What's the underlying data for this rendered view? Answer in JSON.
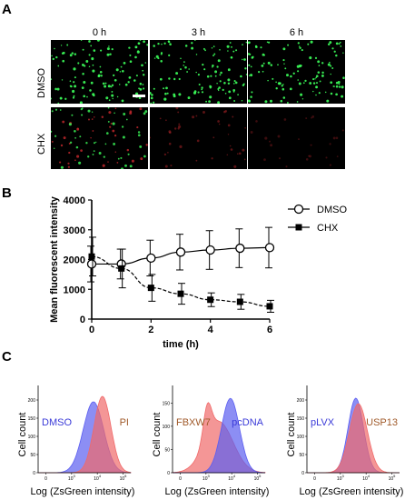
{
  "panels": {
    "a": {
      "letter": "A",
      "columns": [
        "0 h",
        "3 h",
        "6 h"
      ],
      "rows": [
        "DMSO",
        "CHX"
      ],
      "scale_bar": true
    },
    "b": {
      "letter": "B"
    },
    "c": {
      "letter": "C"
    }
  },
  "chart_data": [
    {
      "type": "line",
      "panel": "B",
      "xlabel": "time (h)",
      "ylabel": "Mean fluorescent intensity",
      "xlim": [
        0,
        6
      ],
      "ylim": [
        0,
        4000
      ],
      "xticks": [
        "0",
        "2",
        "4",
        "6"
      ],
      "yticks": [
        "0",
        "1000",
        "2000",
        "3000",
        "4000"
      ],
      "legend_position": "top-right",
      "series": [
        {
          "name": "DMSO",
          "marker": "open-circle",
          "x": [
            0,
            1,
            2,
            3,
            4,
            5,
            6
          ],
          "y": [
            1850,
            1850,
            2050,
            2250,
            2320,
            2380,
            2400
          ],
          "error": [
            600,
            500,
            600,
            600,
            650,
            650,
            680
          ]
        },
        {
          "name": "CHX",
          "marker": "filled-square",
          "x": [
            0,
            1,
            2,
            3,
            4,
            5,
            6
          ],
          "y": [
            2100,
            1700,
            1050,
            850,
            650,
            580,
            430
          ],
          "error": [
            650,
            650,
            450,
            350,
            230,
            250,
            200
          ]
        }
      ]
    },
    {
      "type": "area",
      "panel": "C-1",
      "xlabel": "Log (ZsGreen intensity)",
      "ylabel": "Cell count",
      "yticks": [
        "0",
        "50",
        "100",
        "150",
        "200"
      ],
      "ylim": [
        0,
        230
      ],
      "xticks": [
        "0",
        "10^3",
        "10^4",
        "10^5"
      ],
      "series": [
        {
          "name": "DMSO",
          "color": "#5b5ef0",
          "peak_log": 3.85,
          "peak_count": 195,
          "width": 0.4
        },
        {
          "name": "PI",
          "color": "#f06a6a",
          "peak_log": 4.2,
          "peak_count": 210,
          "width": 0.33
        }
      ]
    },
    {
      "type": "area",
      "panel": "C-2",
      "xlabel": "Log (ZsGreen intensity)",
      "ylabel": "Cell count",
      "yticks": [
        "0",
        "50",
        "100",
        "150"
      ],
      "ylim": [
        0,
        180
      ],
      "xticks": [
        "0",
        "10^3",
        "10^4",
        "10^5"
      ],
      "series": [
        {
          "name": "FBXW7",
          "color": "#f06a6a",
          "peak_log": 3.5,
          "peak_count": 110,
          "width": 0.55
        },
        {
          "name": "pcDNA",
          "color": "#5b5ef0",
          "peak_log": 3.95,
          "peak_count": 160,
          "width": 0.35
        }
      ]
    },
    {
      "type": "area",
      "panel": "C-3",
      "xlabel": "Log (ZsGreen intensity)",
      "ylabel": "Cell count",
      "yticks": [
        "0",
        "50",
        "100",
        "150",
        "200"
      ],
      "ylim": [
        0,
        230
      ],
      "xticks": [
        "0",
        "10^3",
        "10^4",
        "10^5"
      ],
      "series": [
        {
          "name": "pLVX",
          "color": "#5b5ef0",
          "peak_log": 3.6,
          "peak_count": 205,
          "width": 0.3
        },
        {
          "name": "USP13",
          "color": "#f06a6a",
          "peak_log": 3.7,
          "peak_count": 190,
          "width": 0.35
        }
      ]
    }
  ],
  "colors": {
    "cell_green": "#3cff5a",
    "cell_red": "#c8282d",
    "hist_blue": "#5b5ef0",
    "hist_red": "#f06a6a"
  }
}
